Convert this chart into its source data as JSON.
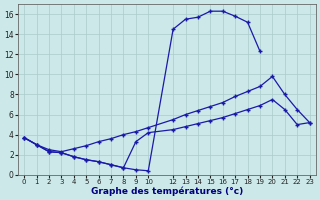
{
  "xlabel": "Graphe des températures (°c)",
  "bg_color": "#cce8e8",
  "line_color": "#1a1aaa",
  "grid_color": "#aacccc",
  "xlim": [
    -0.5,
    23.5
  ],
  "ylim": [
    0,
    17
  ],
  "xticks": [
    0,
    1,
    2,
    3,
    4,
    5,
    6,
    7,
    8,
    9,
    10,
    12,
    13,
    14,
    15,
    16,
    17,
    18,
    19,
    20,
    21,
    22,
    23
  ],
  "yticks": [
    0,
    2,
    4,
    6,
    8,
    10,
    12,
    14,
    16
  ],
  "curve1_x": [
    0,
    1,
    2,
    3,
    4,
    5,
    6,
    7,
    8,
    9,
    10,
    12,
    13,
    14,
    15,
    16,
    17,
    18,
    19
  ],
  "curve1_y": [
    3.7,
    3.0,
    2.3,
    2.2,
    1.8,
    1.5,
    1.3,
    1.0,
    0.7,
    0.5,
    0.4,
    14.5,
    15.5,
    15.7,
    16.3,
    16.3,
    15.8,
    15.2,
    12.3
  ],
  "curve2_x": [
    0,
    1,
    2,
    3,
    4,
    5,
    6,
    7,
    8,
    9,
    10,
    12,
    13,
    14,
    15,
    16,
    17,
    18,
    19,
    20,
    21,
    22,
    23
  ],
  "curve2_y": [
    3.7,
    3.0,
    2.5,
    2.3,
    2.6,
    2.9,
    3.3,
    3.6,
    4.0,
    4.3,
    4.7,
    5.5,
    6.0,
    6.4,
    6.8,
    7.2,
    7.8,
    8.3,
    8.8,
    9.8,
    8.0,
    6.5,
    5.2
  ],
  "curve3_x": [
    0,
    1,
    2,
    3,
    4,
    5,
    6,
    7,
    8,
    9,
    10,
    12,
    13,
    14,
    15,
    16,
    17,
    18,
    19,
    20,
    21,
    22,
    23
  ],
  "curve3_y": [
    3.7,
    3.0,
    2.3,
    2.2,
    1.8,
    1.5,
    1.3,
    1.0,
    0.7,
    3.3,
    4.2,
    4.5,
    4.8,
    5.1,
    5.4,
    5.7,
    6.1,
    6.5,
    6.9,
    7.5,
    6.5,
    5.0,
    5.2
  ]
}
